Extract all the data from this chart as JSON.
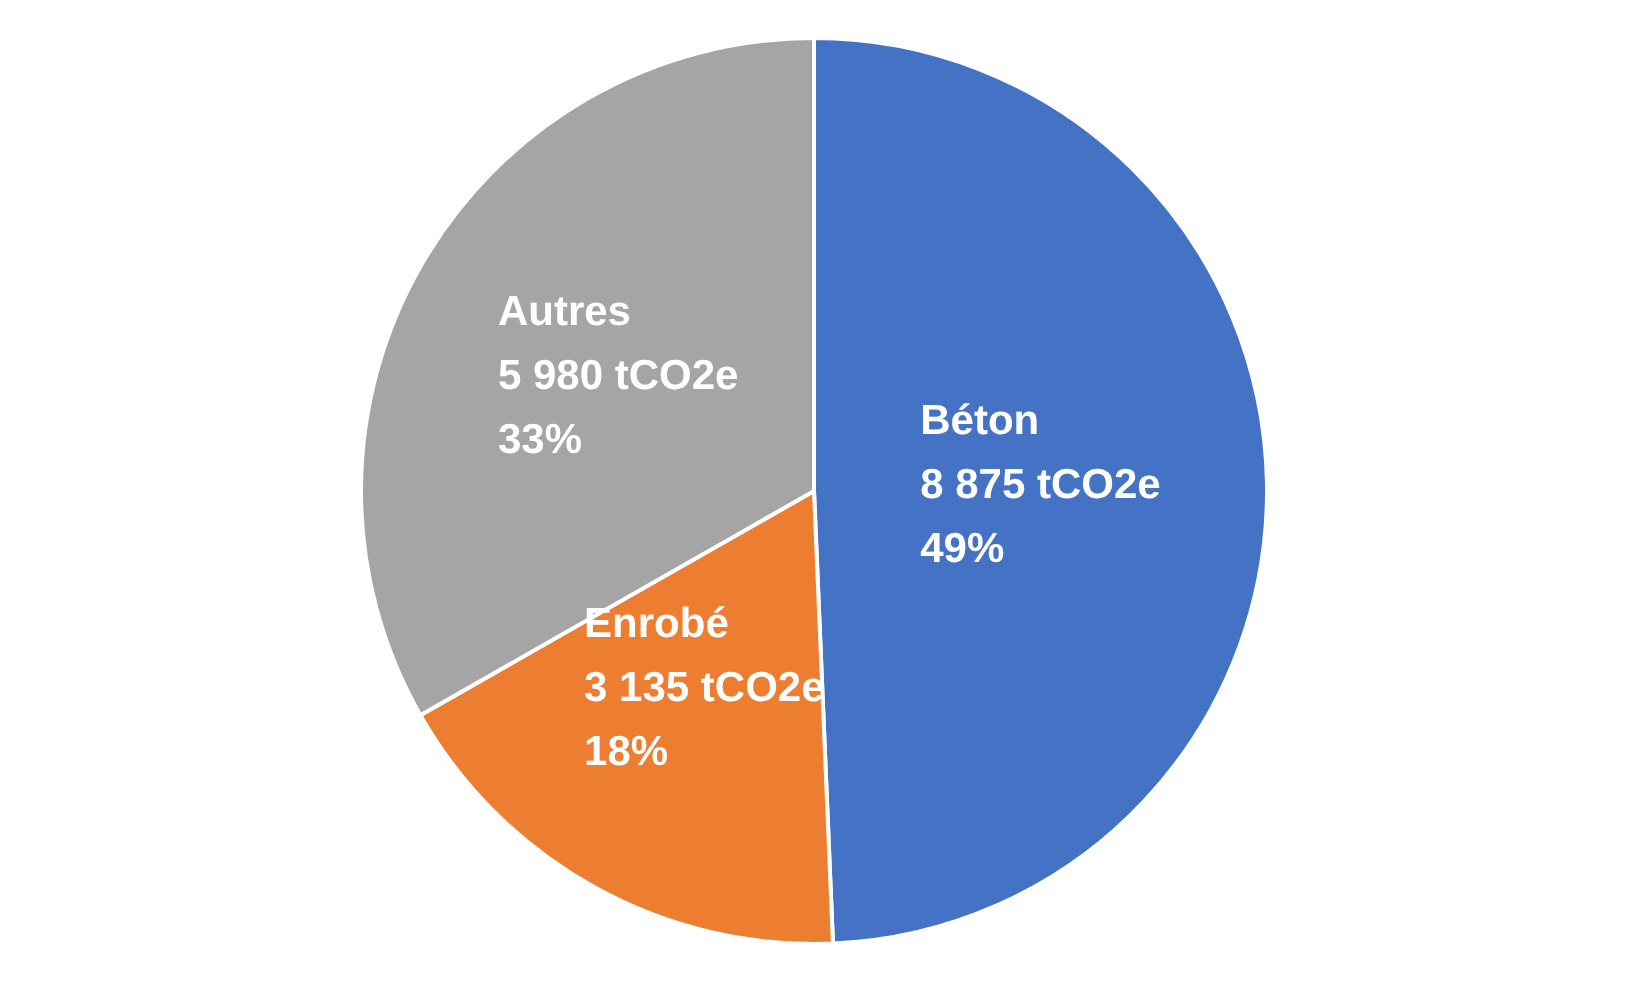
{
  "chart_data": {
    "type": "pie",
    "categories": [
      "Béton",
      "Enrobé",
      "Autres"
    ],
    "values": [
      8875,
      3135,
      5980
    ],
    "colors": [
      "#4472c4",
      "#ed7d31",
      "#a5a5a5"
    ],
    "value_labels": [
      "8 875 tCO2e\n49%",
      "3 135 tCO2e\n18%",
      "5 980 tCO2e\n33%"
    ],
    "legend": false
  }
}
